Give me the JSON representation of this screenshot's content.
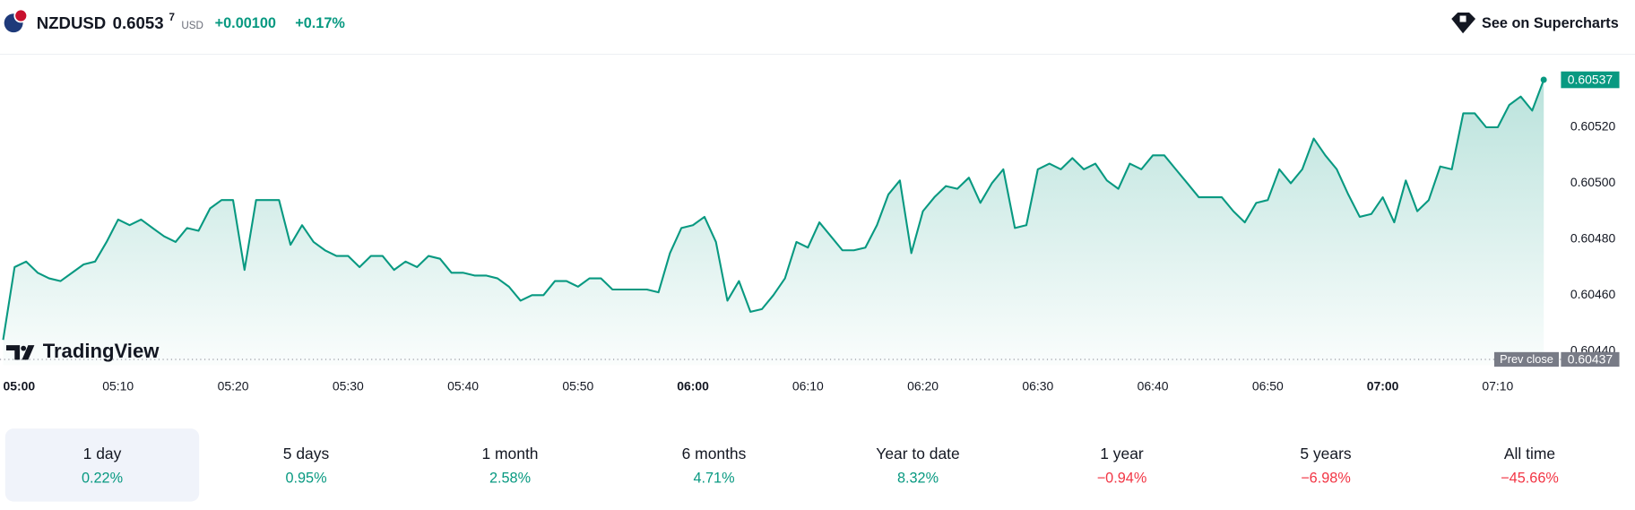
{
  "header": {
    "symbol": "NZDUSD",
    "price": "0.6053",
    "price_fraction": "7",
    "currency": "USD",
    "change": "+0.00100",
    "change_percent": "+0.17%",
    "link": "See on Supercharts",
    "logo": "TradingView"
  },
  "chart_data": {
    "type": "line",
    "color": "#089981",
    "values": [
      0.60444,
      0.6047,
      0.60472,
      0.60468,
      0.60466,
      0.60465,
      0.60468,
      0.60471,
      0.60472,
      0.60479,
      0.60487,
      0.60485,
      0.60487,
      0.60484,
      0.60481,
      0.60479,
      0.60484,
      0.60483,
      0.60491,
      0.60494,
      0.60494,
      0.60469,
      0.60494,
      0.60494,
      0.60494,
      0.60478,
      0.60485,
      0.60479,
      0.60476,
      0.60474,
      0.60474,
      0.6047,
      0.60474,
      0.60474,
      0.60469,
      0.60472,
      0.6047,
      0.60474,
      0.60473,
      0.60468,
      0.60468,
      0.60467,
      0.60467,
      0.60466,
      0.60463,
      0.60458,
      0.6046,
      0.6046,
      0.60465,
      0.60465,
      0.60463,
      0.60466,
      0.60466,
      0.60462,
      0.60462,
      0.60462,
      0.60462,
      0.60461,
      0.60475,
      0.60484,
      0.60485,
      0.60488,
      0.60479,
      0.60458,
      0.60465,
      0.60454,
      0.60455,
      0.6046,
      0.60466,
      0.60479,
      0.60477,
      0.60486,
      0.60481,
      0.60476,
      0.60476,
      0.60477,
      0.60485,
      0.60496,
      0.60501,
      0.60475,
      0.6049,
      0.60495,
      0.60499,
      0.60498,
      0.60502,
      0.60493,
      0.605,
      0.60505,
      0.60484,
      0.60485,
      0.60505,
      0.60507,
      0.60505,
      0.60509,
      0.60505,
      0.60507,
      0.60501,
      0.60498,
      0.60507,
      0.60505,
      0.6051,
      0.6051,
      0.60505,
      0.605,
      0.60495,
      0.60495,
      0.60495,
      0.6049,
      0.60486,
      0.60493,
      0.60494,
      0.60505,
      0.605,
      0.60505,
      0.60516,
      0.6051,
      0.60505,
      0.60496,
      0.60488,
      0.60489,
      0.60495,
      0.60486,
      0.60501,
      0.6049,
      0.60494,
      0.60506,
      0.60505,
      0.60525,
      0.60525,
      0.6052,
      0.6052,
      0.60528,
      0.60531,
      0.60526,
      0.60537
    ],
    "xlim": [
      0,
      135.5
    ],
    "xticks": [
      {
        "value": 0,
        "label": "05:00"
      },
      {
        "value": 10,
        "label": "05:10"
      },
      {
        "value": 20,
        "label": "05:20"
      },
      {
        "value": 30,
        "label": "05:30"
      },
      {
        "value": 40,
        "label": "05:40"
      },
      {
        "value": 50,
        "label": "05:50"
      },
      {
        "value": 60,
        "label": "06:00"
      },
      {
        "value": 70,
        "label": "06:10"
      },
      {
        "value": 80,
        "label": "06:20"
      },
      {
        "value": 90,
        "label": "06:30"
      },
      {
        "value": 100,
        "label": "06:40"
      },
      {
        "value": 110,
        "label": "06:50"
      },
      {
        "value": 120,
        "label": "07:00"
      },
      {
        "value": 130,
        "label": "07:10"
      }
    ],
    "ylim": [
      0.60435,
      0.60545
    ],
    "yticks": [
      {
        "value": 0.6044,
        "label": "0.60440"
      },
      {
        "value": 0.6046,
        "label": "0.60460"
      },
      {
        "value": 0.6048,
        "label": "0.60480"
      },
      {
        "value": 0.605,
        "label": "0.60500"
      },
      {
        "value": 0.6052,
        "label": "0.60520"
      }
    ],
    "prev_close_label": "Prev close",
    "prev_close": 0.60437
  },
  "periods": [
    {
      "label": "1 day",
      "value": "0.22%",
      "color": "#089981"
    },
    {
      "label": "5 days",
      "value": "0.95%",
      "color": "#089981"
    },
    {
      "label": "1 month",
      "value": "2.58%",
      "color": "#089981"
    },
    {
      "label": "6 months",
      "value": "4.71%",
      "color": "#089981"
    },
    {
      "label": "Year to date",
      "value": "8.32%",
      "color": "#089981"
    },
    {
      "label": "1 year",
      "value": "−0.94%",
      "color": "#f23645"
    },
    {
      "label": "5 years",
      "value": "−6.98%",
      "color": "#f23645"
    },
    {
      "label": "All time",
      "value": "−45.66%",
      "color": "#f23645"
    }
  ]
}
